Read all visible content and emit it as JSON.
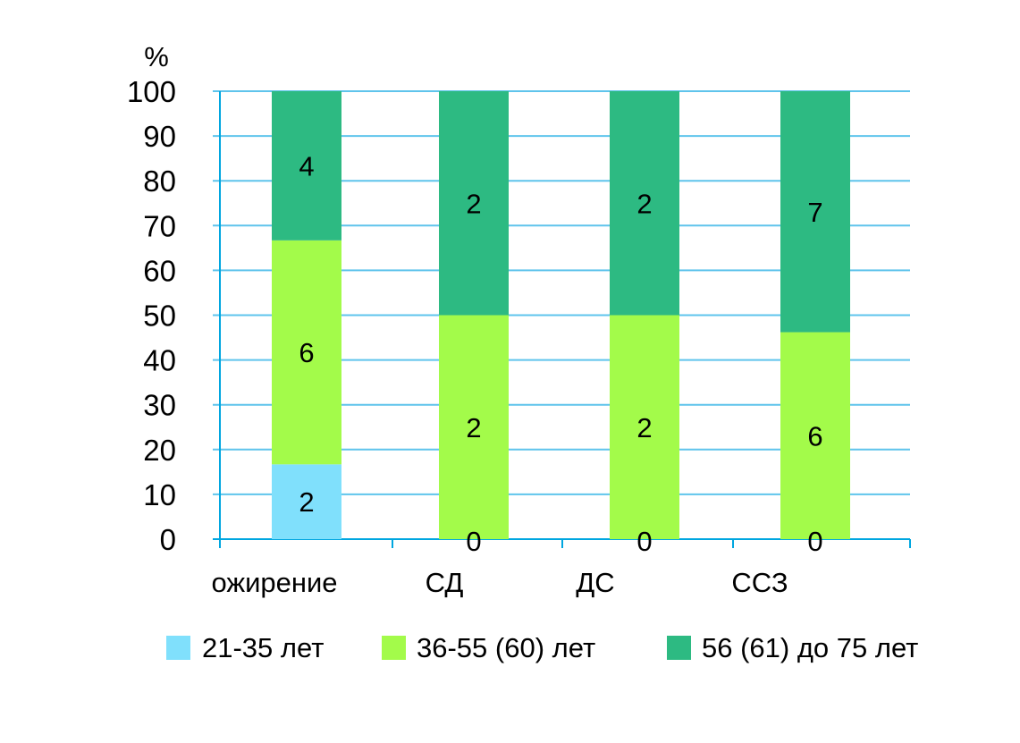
{
  "chart_data": {
    "type": "bar",
    "stacked": true,
    "percent": true,
    "unit_label": "%",
    "categories": [
      "ожирение",
      "СД",
      "ДС",
      "ССЗ"
    ],
    "series": [
      {
        "name": "21-35 лет",
        "color": "#80e0fc",
        "values": [
          2,
          0,
          0,
          0
        ],
        "shares": [
          16.7,
          0,
          0,
          0
        ]
      },
      {
        "name": "36-55 (60) лет",
        "color": "#a3fb4a",
        "values": [
          6,
          2,
          2,
          6
        ],
        "shares": [
          50.0,
          50.0,
          50.0,
          46.2
        ]
      },
      {
        "name": "56 (61) до 75 лет",
        "color": "#2dba82",
        "values": [
          4,
          2,
          2,
          7
        ],
        "shares": [
          33.3,
          50.0,
          50.0,
          53.8
        ]
      }
    ],
    "ylim": [
      0,
      100
    ],
    "yticks": [
      0,
      10,
      20,
      30,
      40,
      50,
      60,
      70,
      80,
      90,
      100
    ],
    "grid": true,
    "legend": "bottom"
  }
}
